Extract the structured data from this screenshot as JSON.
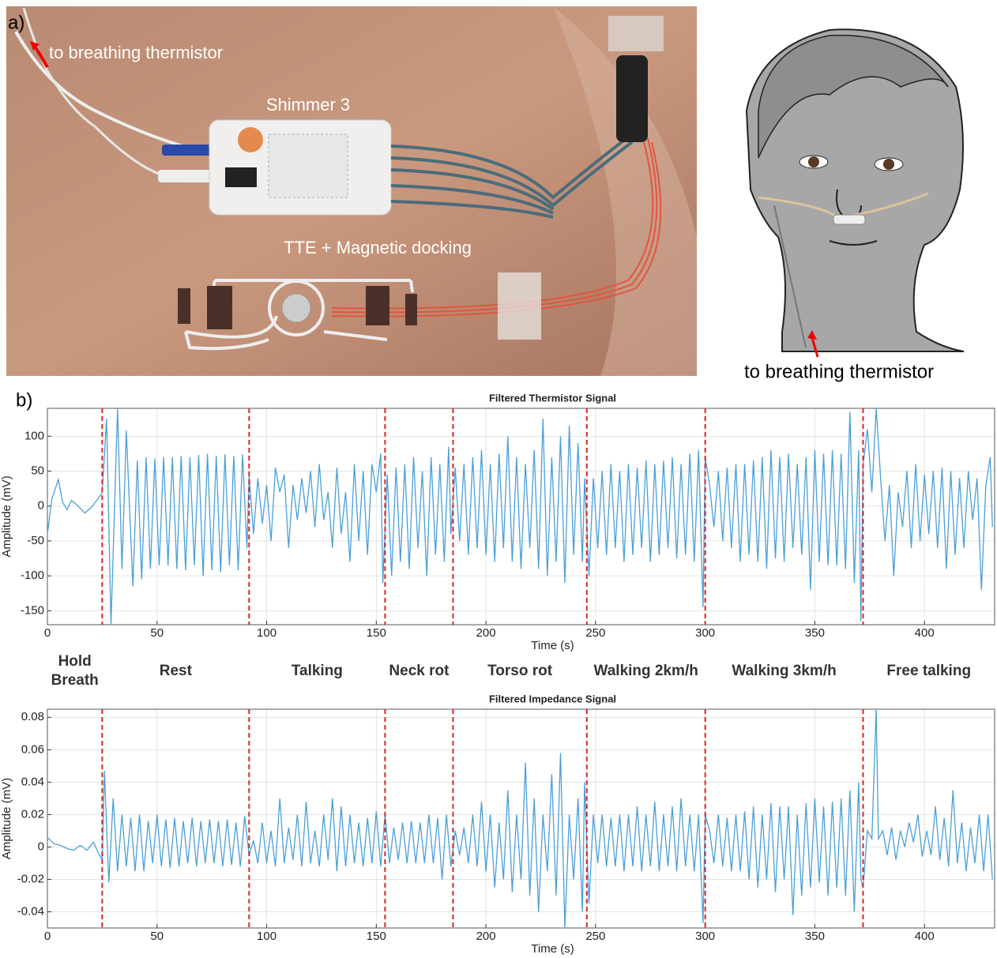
{
  "panel_a": {
    "label": "a)",
    "annotations": [
      "to breathing thermistor",
      "Shimmer 3",
      "TTE + Magnetic docking",
      "to breathing thermistor"
    ]
  },
  "panel_b": {
    "label": "b)",
    "segments": [
      "Hold Breath",
      "Rest",
      "Talking",
      "Neck rot",
      "Torso rot",
      "Walking 2km/h",
      "Walking 3km/h",
      "Free talking"
    ]
  },
  "chart_data": [
    {
      "type": "line",
      "title": "Filtered Thermistor Signal",
      "xlabel": "Time (s)",
      "ylabel": "Amplitude (mV)",
      "x": [
        0,
        2,
        5,
        7,
        9,
        11,
        14,
        17,
        20,
        23,
        25,
        27,
        29,
        32,
        34,
        36,
        39,
        41,
        43,
        45,
        47,
        49,
        51,
        53,
        55,
        57,
        59,
        61,
        63,
        65,
        67,
        69,
        71,
        73,
        75,
        77,
        79,
        81,
        83,
        85,
        87,
        89,
        91,
        92,
        94,
        96,
        98,
        100,
        102,
        104,
        106,
        108,
        110,
        112,
        114,
        116,
        118,
        120,
        122,
        124,
        126,
        128,
        130,
        132,
        134,
        136,
        138,
        140,
        142,
        144,
        146,
        148,
        150,
        152,
        153,
        155,
        157,
        159,
        161,
        163,
        165,
        167,
        169,
        171,
        173,
        175,
        177,
        179,
        181,
        183,
        184,
        186,
        188,
        190,
        192,
        194,
        196,
        198,
        200,
        202,
        204,
        206,
        208,
        210,
        212,
        214,
        216,
        218,
        220,
        222,
        224,
        226,
        228,
        230,
        232,
        234,
        236,
        238,
        240,
        242,
        244,
        245,
        247,
        249,
        251,
        253,
        255,
        257,
        259,
        261,
        263,
        265,
        267,
        269,
        271,
        273,
        275,
        277,
        279,
        281,
        283,
        285,
        287,
        289,
        291,
        293,
        295,
        297,
        299,
        300,
        302,
        304,
        306,
        308,
        310,
        312,
        314,
        316,
        318,
        320,
        322,
        324,
        326,
        328,
        330,
        332,
        334,
        336,
        338,
        340,
        342,
        344,
        346,
        348,
        350,
        352,
        354,
        356,
        358,
        360,
        362,
        364,
        366,
        368,
        370,
        371,
        372,
        374,
        376,
        378,
        380,
        382,
        384,
        386,
        388,
        390,
        392,
        394,
        396,
        398,
        400,
        402,
        404,
        406,
        408,
        410,
        412,
        414,
        416,
        418,
        420,
        422,
        424,
        426,
        428,
        430,
        431
      ],
      "series": [
        {
          "color": "#4a9fd8",
          "values": [
            -40,
            10,
            38,
            5,
            -5,
            8,
            0,
            -10,
            -2,
            10,
            20,
            125,
            -170,
            140,
            -90,
            108,
            -115,
            65,
            -105,
            70,
            -90,
            68,
            -85,
            70,
            -85,
            70,
            -90,
            72,
            -92,
            70,
            -85,
            73,
            -100,
            75,
            -92,
            72,
            -95,
            74,
            -85,
            72,
            -92,
            74,
            -60,
            45,
            -40,
            40,
            -25,
            30,
            -50,
            55,
            20,
            45,
            -60,
            30,
            -20,
            40,
            -10,
            50,
            -30,
            60,
            -20,
            20,
            -60,
            55,
            -40,
            20,
            -80,
            60,
            -50,
            50,
            -70,
            60,
            20,
            75,
            -110,
            45,
            -100,
            55,
            -80,
            60,
            -90,
            70,
            -60,
            50,
            -100,
            70,
            -70,
            60,
            -80,
            85,
            -40,
            55,
            -50,
            60,
            -70,
            70,
            -60,
            80,
            -70,
            60,
            -80,
            75,
            -60,
            100,
            -80,
            70,
            -90,
            60,
            -60,
            80,
            -90,
            125,
            -100,
            70,
            -80,
            100,
            -110,
            115,
            -70,
            90,
            -80,
            40,
            -100,
            40,
            -60,
            50,
            -70,
            60,
            -60,
            50,
            -80,
            60,
            -70,
            55,
            -60,
            65,
            -80,
            60,
            -70,
            65,
            -60,
            70,
            -75,
            60,
            -70,
            75,
            -80,
            80,
            -145,
            70,
            30,
            -30,
            50,
            -50,
            55,
            -60,
            60,
            -80,
            60,
            -70,
            65,
            -80,
            70,
            -90,
            80,
            -75,
            70,
            -80,
            75,
            -60,
            60,
            -70,
            70,
            -120,
            80,
            -80,
            75,
            -85,
            80,
            -85,
            75,
            -90,
            135,
            -110,
            80,
            -165,
            60,
            110,
            20,
            140,
            40,
            -50,
            30,
            -100,
            20,
            -30,
            50,
            -60,
            60,
            -50,
            45,
            -40,
            50,
            -60,
            55,
            -90,
            50,
            -70,
            40,
            -60,
            50,
            -20,
            40,
            -120,
            30,
            70,
            -30
          ]
        }
      ],
      "xlim": [
        0,
        432
      ],
      "ylim": [
        -170,
        140
      ],
      "xticks": [
        0,
        50,
        100,
        150,
        200,
        250,
        300,
        350,
        400
      ],
      "yticks": [
        -150,
        -100,
        -50,
        0,
        50,
        100
      ],
      "grid": true,
      "event_lines": [
        25,
        92,
        154,
        185,
        246,
        300,
        372
      ],
      "event_line_color": "#d62728"
    },
    {
      "type": "line",
      "title": "Filtered Impedance Signal",
      "xlabel": "Time (s)",
      "ylabel": "Amplitude (mV)",
      "x": [
        0,
        3,
        6,
        9,
        12,
        15,
        18,
        21,
        23,
        25,
        26,
        28,
        30,
        32,
        34,
        36,
        38,
        40,
        42,
        44,
        46,
        48,
        50,
        52,
        54,
        56,
        58,
        60,
        62,
        64,
        66,
        68,
        70,
        72,
        74,
        76,
        78,
        80,
        82,
        84,
        86,
        88,
        90,
        92,
        94,
        96,
        98,
        100,
        102,
        104,
        106,
        108,
        110,
        112,
        114,
        116,
        118,
        120,
        122,
        124,
        126,
        128,
        130,
        132,
        134,
        136,
        138,
        140,
        142,
        144,
        146,
        148,
        150,
        152,
        154,
        156,
        158,
        160,
        162,
        164,
        166,
        168,
        170,
        172,
        174,
        176,
        178,
        180,
        182,
        184,
        186,
        188,
        190,
        192,
        194,
        196,
        198,
        200,
        202,
        204,
        206,
        208,
        210,
        212,
        214,
        216,
        218,
        220,
        222,
        224,
        226,
        228,
        230,
        232,
        234,
        236,
        238,
        240,
        242,
        244,
        245,
        247,
        249,
        251,
        253,
        255,
        257,
        259,
        261,
        263,
        265,
        267,
        269,
        271,
        273,
        275,
        277,
        279,
        281,
        283,
        285,
        287,
        289,
        291,
        293,
        295,
        297,
        299,
        300,
        302,
        304,
        306,
        308,
        310,
        312,
        314,
        316,
        318,
        320,
        322,
        324,
        326,
        328,
        330,
        332,
        334,
        336,
        338,
        340,
        342,
        344,
        346,
        348,
        350,
        352,
        354,
        356,
        358,
        360,
        362,
        364,
        366,
        368,
        370,
        371,
        372,
        374,
        376,
        378,
        379,
        381,
        383,
        385,
        387,
        389,
        391,
        393,
        395,
        397,
        399,
        401,
        403,
        405,
        407,
        409,
        411,
        413,
        415,
        417,
        419,
        421,
        423,
        425,
        427,
        429,
        431
      ],
      "series": [
        {
          "color": "#4a9fd8",
          "values": [
            0.006,
            0.002,
            0.001,
            -0.001,
            -0.002,
            0.001,
            -0.002,
            0.003,
            -0.003,
            -0.008,
            0.047,
            -0.022,
            0.03,
            -0.015,
            0.02,
            -0.012,
            0.018,
            -0.015,
            0.02,
            -0.015,
            0.016,
            -0.01,
            0.02,
            -0.012,
            0.017,
            -0.013,
            0.018,
            -0.012,
            0.016,
            -0.01,
            0.018,
            -0.012,
            0.016,
            -0.01,
            0.017,
            -0.01,
            0.016,
            -0.012,
            0.017,
            -0.011,
            0.015,
            -0.012,
            0.019,
            -0.005,
            0.004,
            -0.01,
            0.015,
            -0.01,
            0.01,
            -0.012,
            0.03,
            -0.01,
            0.012,
            -0.008,
            0.02,
            -0.012,
            0.028,
            -0.01,
            0.01,
            -0.012,
            0.02,
            -0.008,
            0.03,
            -0.015,
            0.025,
            -0.012,
            0.02,
            -0.01,
            0.015,
            -0.012,
            0.018,
            -0.01,
            0.022,
            -0.012,
            0.02,
            -0.01,
            0.012,
            -0.008,
            0.015,
            -0.01,
            0.016,
            -0.01,
            0.015,
            -0.01,
            0.02,
            -0.01,
            0.018,
            -0.02,
            0.02,
            -0.012,
            0.01,
            -0.005,
            0.012,
            -0.01,
            0.02,
            -0.012,
            0.028,
            -0.015,
            0.02,
            -0.025,
            0.015,
            -0.02,
            0.035,
            -0.028,
            0.02,
            -0.02,
            0.052,
            -0.03,
            0.03,
            -0.04,
            0.02,
            -0.015,
            0.045,
            -0.03,
            0.058,
            -0.05,
            0.02,
            -0.02,
            0.03,
            -0.04,
            0.04,
            -0.035,
            0.02,
            -0.01,
            0.02,
            -0.012,
            0.018,
            -0.012,
            0.02,
            -0.015,
            0.02,
            -0.012,
            0.025,
            -0.015,
            0.02,
            -0.012,
            0.028,
            -0.015,
            0.02,
            -0.012,
            0.025,
            -0.015,
            0.03,
            -0.012,
            0.02,
            -0.015,
            0.02,
            -0.047,
            0.02,
            0.01,
            -0.01,
            0.02,
            -0.012,
            0.018,
            -0.015,
            0.02,
            -0.015,
            0.022,
            -0.02,
            0.025,
            -0.025,
            0.02,
            -0.02,
            0.027,
            -0.028,
            0.025,
            -0.02,
            0.025,
            -0.042,
            0.02,
            -0.03,
            0.027,
            -0.025,
            0.03,
            -0.022,
            0.025,
            -0.03,
            0.028,
            -0.025,
            0.03,
            -0.03,
            0.035,
            -0.04,
            0.04,
            -0.02,
            -0.025,
            0.01,
            0.005,
            0.085,
            0.005,
            0.01,
            -0.005,
            0.012,
            -0.008,
            0.01,
            0.0,
            0.015,
            0.003,
            0.02,
            -0.006,
            0.01,
            -0.005,
            0.025,
            -0.008,
            0.018,
            -0.012,
            0.035,
            -0.01,
            0.015,
            -0.015,
            0.012,
            -0.01,
            0.02,
            -0.015,
            0.02,
            -0.02
          ]
        }
      ],
      "xlim": [
        0,
        432
      ],
      "ylim": [
        -0.05,
        0.085
      ],
      "xticks": [
        0,
        50,
        100,
        150,
        200,
        250,
        300,
        350,
        400
      ],
      "yticks": [
        -0.04,
        -0.02,
        0,
        0.02,
        0.04,
        0.06,
        0.08
      ],
      "grid": true,
      "event_lines": [
        25,
        92,
        154,
        185,
        246,
        300,
        372
      ],
      "event_line_color": "#d62728"
    }
  ]
}
